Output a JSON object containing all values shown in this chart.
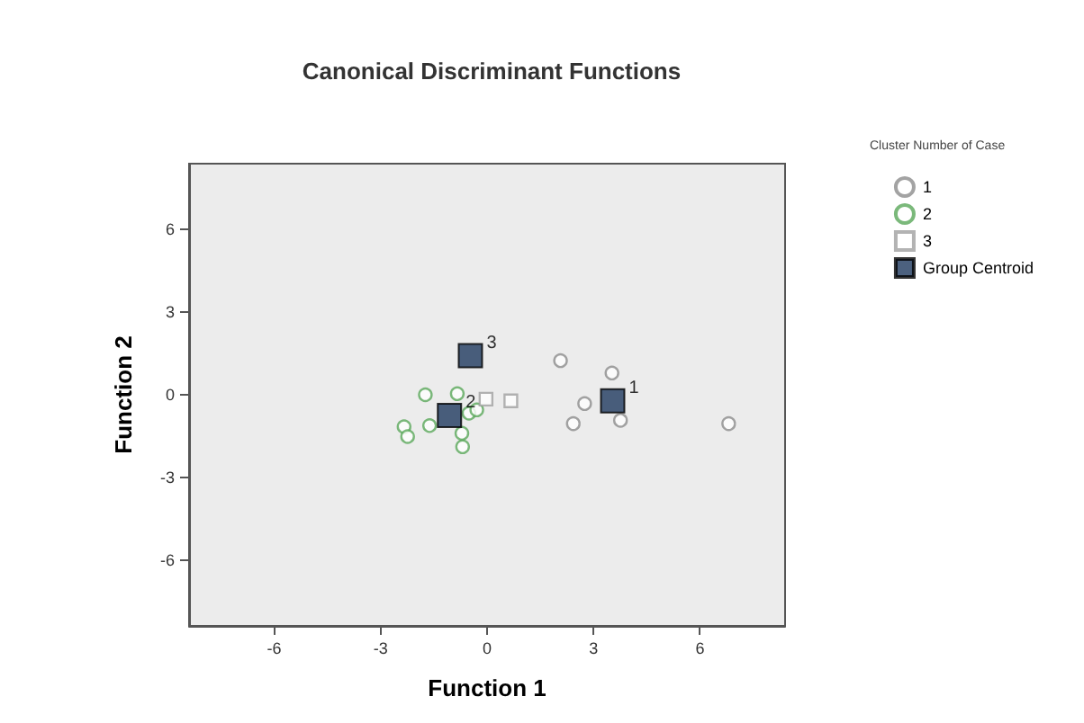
{
  "chart_data": {
    "type": "scatter",
    "title": "Canonical Discriminant Functions",
    "xlabel": "Function 1",
    "ylabel": "Function 2",
    "legend_title": "Cluster Number of Case",
    "legend": "top right",
    "grid": false,
    "xlim": [
      -8.4,
      8.4
    ],
    "ylim": [
      -8.4,
      8.4
    ],
    "xticks": [
      -6,
      -3,
      0,
      3,
      6
    ],
    "yticks": [
      -6,
      -3,
      0,
      3,
      6
    ],
    "series": [
      {
        "name": "1",
        "color": "#8c8c8c",
        "marker": "circle",
        "x": [
          2.07,
          3.52,
          2.75,
          2.43,
          3.76,
          6.81
        ],
        "values": [
          1.24,
          0.79,
          -0.32,
          -1.05,
          -0.93,
          -1.05
        ]
      },
      {
        "name": "2",
        "color": "#5aa85a",
        "marker": "circle",
        "x": [
          -1.74,
          -0.84,
          -2.34,
          -2.24,
          -1.62,
          -0.71,
          -0.69,
          -0.51,
          -0.29
        ],
        "values": [
          0,
          0.04,
          -1.16,
          -1.52,
          -1.12,
          -1.4,
          -1.89,
          -0.67,
          -0.55
        ]
      },
      {
        "name": "3",
        "color": "#a0a0a0",
        "marker": "square",
        "x": [
          0.67,
          -0.03
        ],
        "values": [
          -0.22,
          -0.16
        ]
      },
      {
        "name": "Group Centroid",
        "color": "#1f3a5f",
        "marker": "square",
        "x": [
          3.54,
          -1.06,
          -0.47
        ],
        "values": [
          -0.22,
          -0.75,
          1.42
        ]
      }
    ],
    "annotations": [
      {
        "text": "1",
        "x": 3.54,
        "y": -0.22
      },
      {
        "text": "2",
        "x": -1.06,
        "y": -0.75
      },
      {
        "text": "3",
        "x": -0.47,
        "y": 1.42
      }
    ]
  }
}
